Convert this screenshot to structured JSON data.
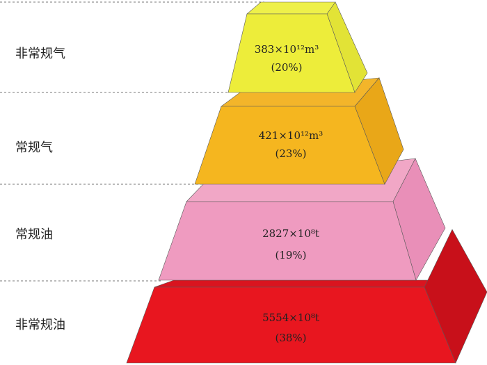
{
  "levels": [
    {
      "label": "非常规气",
      "value": "383×10¹²m³",
      "share": "(20%)"
    },
    {
      "label": "常规气",
      "value": "421×10¹²m³",
      "share": "(23%)"
    },
    {
      "label": "常规油",
      "value": "2827×10⁸t",
      "share": "(19%)"
    },
    {
      "label": "非常规油",
      "value": "5554×10⁸t",
      "share": "(38%)"
    }
  ]
}
